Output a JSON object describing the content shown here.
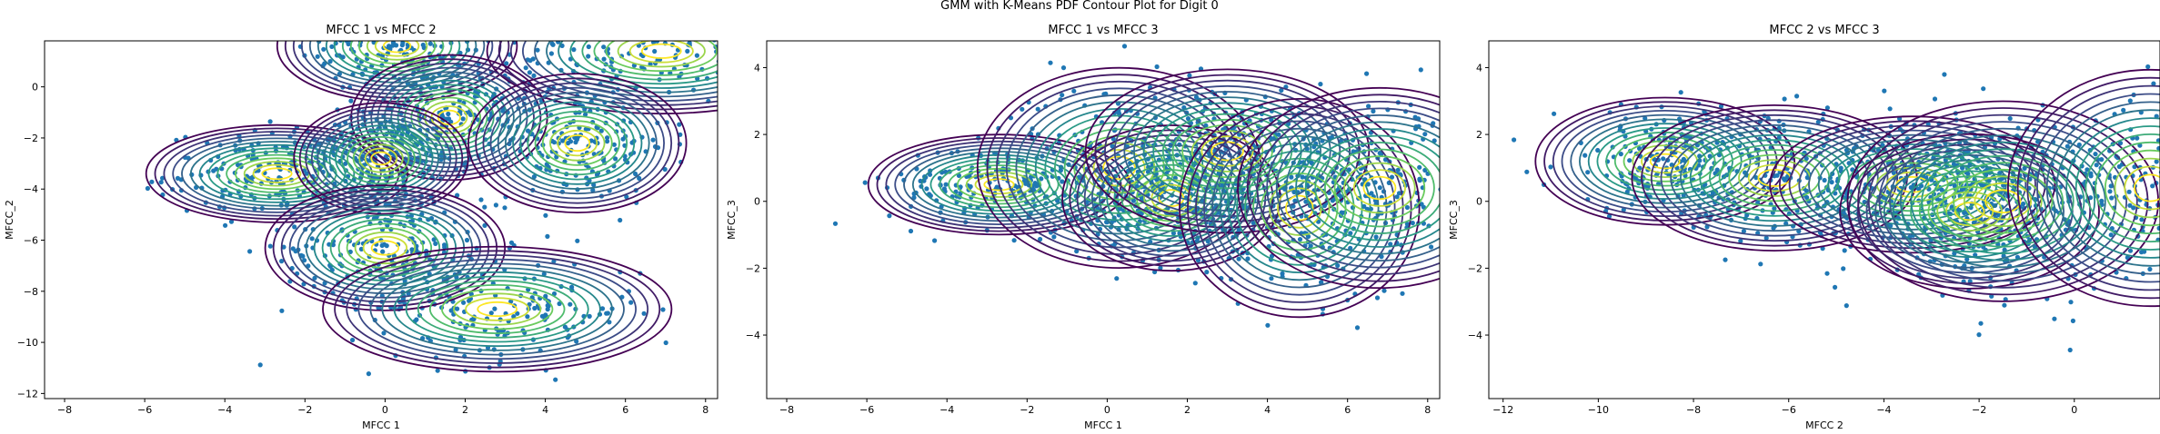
{
  "suptitle": "GMM with K-Means PDF Contour Plot for Digit 0",
  "colors": {
    "points": "#1f77b4",
    "contour_low": "#440154",
    "contour_mid": "#21918c",
    "contour_high": "#fde725"
  },
  "chart_data": [
    {
      "type": "scatter",
      "title": "MFCC 1 vs MFCC 2",
      "xlabel": "MFCC 1",
      "ylabel": "MFCC_2",
      "xlim": [
        -8.5,
        8.3
      ],
      "ylim": [
        -12.2,
        1.8
      ],
      "xticks": [
        -8,
        -6,
        -4,
        -2,
        0,
        2,
        4,
        6,
        8
      ],
      "yticks": [
        -12,
        -10,
        -8,
        -6,
        -4,
        -2,
        0
      ],
      "components": [
        {
          "mean": [
            0.3,
            1.6
          ],
          "sd": [
            1.1,
            0.8
          ],
          "rho": 0.0
        },
        {
          "mean": [
            6.9,
            1.4
          ],
          "sd": [
            1.6,
            0.9
          ],
          "rho": 0.0
        },
        {
          "mean": [
            -2.7,
            -3.4
          ],
          "sd": [
            1.2,
            0.7
          ],
          "rho": 0.0
        },
        {
          "mean": [
            1.6,
            -1.2
          ],
          "sd": [
            0.9,
            0.9
          ],
          "rho": 0.0
        },
        {
          "mean": [
            4.8,
            -2.2
          ],
          "sd": [
            1.0,
            1.0
          ],
          "rho": 0.0
        },
        {
          "mean": [
            -0.1,
            -2.8
          ],
          "sd": [
            0.8,
            0.8
          ],
          "rho": 0.0
        },
        {
          "mean": [
            0.0,
            -6.3
          ],
          "sd": [
            1.1,
            0.9
          ],
          "rho": 0.0
        },
        {
          "mean": [
            2.8,
            -8.7
          ],
          "sd": [
            1.6,
            0.9
          ],
          "rho": 0.0
        }
      ]
    },
    {
      "type": "scatter",
      "title": "MFCC 1 vs MFCC 3",
      "xlabel": "MFCC 1",
      "ylabel": "MFCC_3",
      "xlim": [
        -8.5,
        8.3
      ],
      "ylim": [
        -5.9,
        4.8
      ],
      "xticks": [
        -8,
        -6,
        -4,
        -2,
        0,
        2,
        4,
        6,
        8
      ],
      "yticks": [
        -4,
        -2,
        0,
        2,
        4
      ],
      "components": [
        {
          "mean": [
            -2.7,
            0.5
          ],
          "sd": [
            1.2,
            0.55
          ],
          "rho": 0.0
        },
        {
          "mean": [
            0.3,
            1.0
          ],
          "sd": [
            1.3,
            1.1
          ],
          "rho": 0.0
        },
        {
          "mean": [
            1.6,
            0.1
          ],
          "sd": [
            1.0,
            0.8
          ],
          "rho": 0.0
        },
        {
          "mean": [
            3.0,
            1.5
          ],
          "sd": [
            1.3,
            0.9
          ],
          "rho": 0.0
        },
        {
          "mean": [
            4.8,
            -0.2
          ],
          "sd": [
            1.1,
            1.2
          ],
          "rho": 0.0
        },
        {
          "mean": [
            6.8,
            0.4
          ],
          "sd": [
            1.3,
            1.1
          ],
          "rho": 0.0
        }
      ]
    },
    {
      "type": "scatter",
      "title": "MFCC 2 vs MFCC 3",
      "xlabel": "MFCC 2",
      "ylabel": "MFCC_3",
      "xlim": [
        -12.3,
        1.8
      ],
      "ylim": [
        -5.9,
        4.8
      ],
      "xticks": [
        -12,
        -10,
        -8,
        -6,
        -4,
        -2,
        0
      ],
      "yticks": [
        -4,
        -2,
        0,
        2,
        4
      ],
      "components": [
        {
          "mean": [
            -8.6,
            1.2
          ],
          "sd": [
            1.0,
            0.7
          ],
          "rho": 0.0
        },
        {
          "mean": [
            -6.3,
            0.7
          ],
          "sd": [
            1.1,
            0.8
          ],
          "rho": 0.0
        },
        {
          "mean": [
            -3.4,
            0.5
          ],
          "sd": [
            1.1,
            0.75
          ],
          "rho": 0.0
        },
        {
          "mean": [
            -2.2,
            -0.3
          ],
          "sd": [
            1.0,
            0.85
          ],
          "rho": 0.0
        },
        {
          "mean": [
            -1.5,
            0.0
          ],
          "sd": [
            1.2,
            1.1
          ],
          "rho": 0.0
        },
        {
          "mean": [
            1.6,
            0.4
          ],
          "sd": [
            1.1,
            1.3
          ],
          "rho": 0.0
        }
      ]
    }
  ]
}
